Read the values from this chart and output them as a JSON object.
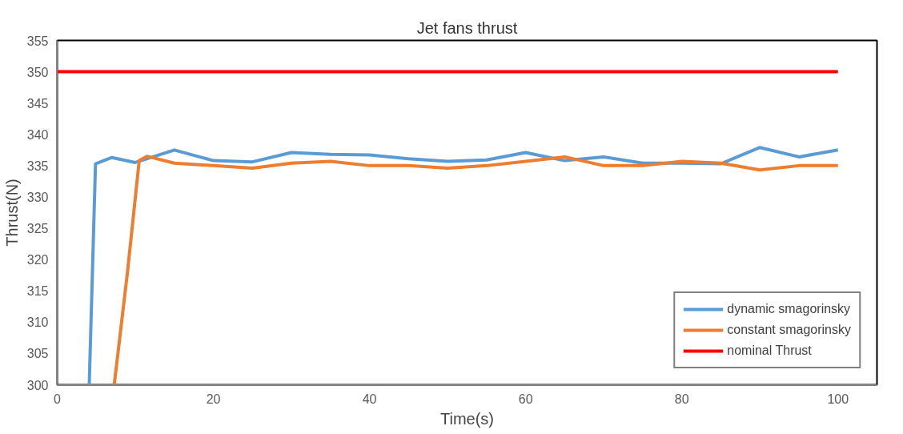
{
  "chart_data": {
    "type": "line",
    "title": "Jet fans thrust",
    "xlabel": "Time(s)",
    "ylabel": "Thrust(N)",
    "xlim": [
      0,
      105
    ],
    "xticks": [
      0,
      20,
      40,
      60,
      80,
      100
    ],
    "ylim": [
      300,
      355
    ],
    "yticks": [
      300,
      305,
      310,
      315,
      320,
      325,
      330,
      335,
      340,
      345,
      350,
      355
    ],
    "grid": false,
    "legend": "bottom right",
    "marker": "none",
    "line_style": "solid",
    "series": [
      {
        "name": "dynamic smagorinsky",
        "color": "#5b9bd5",
        "x": [
          4.1,
          4.9,
          7,
          10,
          15,
          20,
          25,
          30,
          35,
          40,
          45,
          50,
          55,
          60,
          65,
          70,
          75,
          80,
          85,
          90,
          95,
          100
        ],
        "values": [
          300,
          335.3,
          336.3,
          335.5,
          337.5,
          335.8,
          335.6,
          337.1,
          336.8,
          336.7,
          336.1,
          335.7,
          335.9,
          337.1,
          335.8,
          336.4,
          335.4,
          335.4,
          335.3,
          337.9,
          336.4,
          337.5
        ]
      },
      {
        "name": "constant smagorinsky",
        "color": "#ed7d31",
        "x": [
          7.3,
          9,
          10.5,
          11.5,
          15,
          20,
          25,
          30,
          35,
          40,
          45,
          50,
          55,
          60,
          65,
          70,
          75,
          80,
          85,
          90,
          95,
          100
        ],
        "values": [
          300,
          318,
          335.8,
          336.5,
          335.4,
          335.0,
          334.6,
          335.4,
          335.7,
          335.0,
          335.0,
          334.6,
          335.0,
          335.7,
          336.4,
          335.0,
          335.0,
          335.7,
          335.4,
          334.3,
          335.0,
          335.0
        ]
      },
      {
        "name": "nominal Thrust",
        "color": "#ff0000",
        "x": [
          0,
          100
        ],
        "values": [
          350,
          350
        ]
      }
    ]
  }
}
